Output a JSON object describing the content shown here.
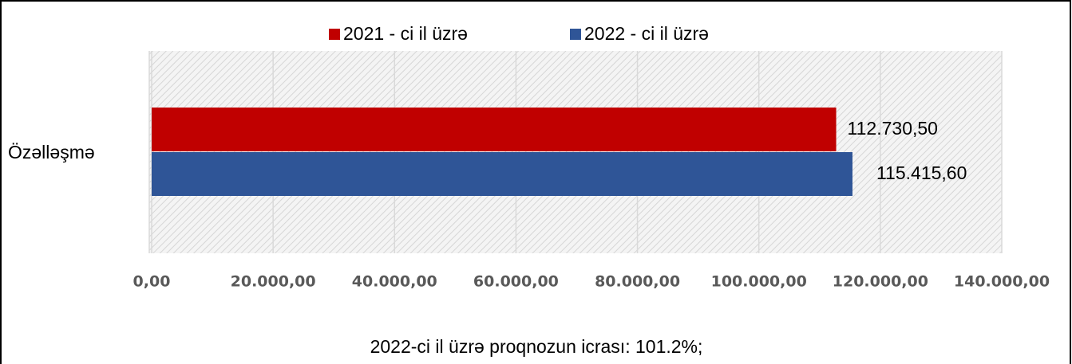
{
  "chart_data": {
    "type": "barh",
    "categories": [
      "Özəlləşmə"
    ],
    "series": [
      {
        "name": "2021 - ci il üzrə",
        "color": "#c00000",
        "values": [
          112730.5
        ],
        "value_labels": [
          "112.730,50"
        ]
      },
      {
        "name": "2022 - ci il üzrə",
        "color": "#2f5597",
        "values": [
          115415.6
        ],
        "value_labels": [
          "115.415,60"
        ]
      }
    ],
    "xlim": [
      0,
      140000
    ],
    "xticks": [
      {
        "value": 0,
        "label": "0,00"
      },
      {
        "value": 20000,
        "label": "20.000,00"
      },
      {
        "value": 40000,
        "label": "40.000,00"
      },
      {
        "value": 60000,
        "label": "60.000,00"
      },
      {
        "value": 80000,
        "label": "80.000,00"
      },
      {
        "value": 100000,
        "label": "100.000,00"
      },
      {
        "value": 120000,
        "label": "120.000,00"
      },
      {
        "value": 140000,
        "label": "140.000,00"
      }
    ],
    "grid": true,
    "legend": "top",
    "annotation": "2022-ci il üzrə proqnozun icrası: 101.2%;"
  }
}
